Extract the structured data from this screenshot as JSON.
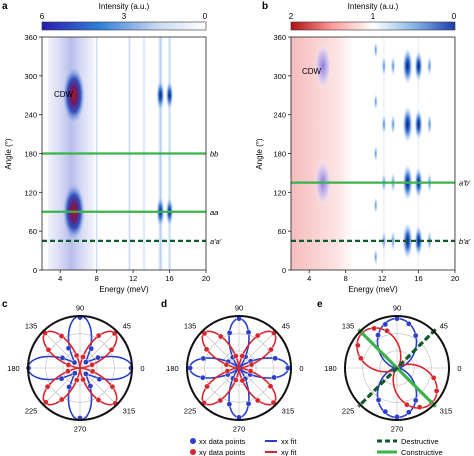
{
  "chart_data": [
    {
      "panel": "a",
      "type": "heatmap",
      "colorbar": {
        "label": "Intensity (a.u.)",
        "ticks": [
          "6",
          "3",
          "0"
        ],
        "range": [
          6,
          0
        ],
        "colormap": [
          "#2b1ab0",
          "#2f7fd8",
          "#c9d8f0",
          "#ffffff"
        ]
      },
      "xlabel": "Energy (meV)",
      "ylabel": "Angle (°)",
      "xticks": [
        4,
        8,
        12,
        16,
        20
      ],
      "yticks": [
        0,
        60,
        120,
        180,
        240,
        300,
        360
      ],
      "xlim": [
        2,
        20
      ],
      "ylim": [
        0,
        360
      ],
      "annotations": [
        {
          "text": "CDW",
          "x": 4.4,
          "y": 300
        }
      ],
      "horizontal_lines": [
        {
          "y": 180,
          "label": "bb",
          "style": "solid",
          "color": "#3bb34a"
        },
        {
          "y": 90,
          "label": "aa",
          "style": "solid",
          "color": "#3bb34a"
        },
        {
          "y": 45,
          "label": "a′a′",
          "style": "dashed",
          "color": "#0d5a2a"
        }
      ],
      "hot_spots": [
        {
          "x": 5.5,
          "y": 270,
          "intensity": 6
        },
        {
          "x": 5.5,
          "y": 90,
          "intensity": 6
        },
        {
          "x": 15.0,
          "y": 270,
          "intensity": 3
        },
        {
          "x": 15.0,
          "y": 90,
          "intensity": 3
        },
        {
          "x": 16.0,
          "y": 270,
          "intensity": 2
        },
        {
          "x": 16.0,
          "y": 90,
          "intensity": 2
        }
      ]
    },
    {
      "panel": "b",
      "type": "heatmap",
      "colorbar": {
        "label": "Intensity (a.u.)",
        "ticks": [
          "2",
          "1",
          "0"
        ],
        "range": [
          2,
          0
        ],
        "colormap": [
          "#b01010",
          "#ff9b9b",
          "#ffffff",
          "#8ab4e6",
          "#1a3fae"
        ]
      },
      "xlabel": "Energy (meV)",
      "ylabel": "Angle (°)",
      "xticks": [
        4,
        8,
        12,
        16,
        20
      ],
      "yticks": [
        0,
        60,
        120,
        180,
        240,
        300,
        360
      ],
      "xlim": [
        2,
        20
      ],
      "ylim": [
        0,
        360
      ],
      "annotations": [
        {
          "text": "CDW",
          "x": 4.4,
          "y": 300
        }
      ],
      "horizontal_lines": [
        {
          "y": 135,
          "label": "a′b′",
          "style": "solid",
          "color": "#3bb34a"
        },
        {
          "y": 45,
          "label": "b′a′",
          "style": "dashed",
          "color": "#0d5a2a"
        }
      ],
      "hot_spots": [
        {
          "x": 5.5,
          "y": 315,
          "intensity": 1
        },
        {
          "x": 5.5,
          "y": 135,
          "intensity": 1
        },
        {
          "x": 14.8,
          "y": 45,
          "intensity": 2
        },
        {
          "x": 14.8,
          "y": 135,
          "intensity": 2
        },
        {
          "x": 14.8,
          "y": 225,
          "intensity": 2
        },
        {
          "x": 14.8,
          "y": 315,
          "intensity": 2
        }
      ]
    },
    {
      "panel": "c",
      "type": "polar",
      "angle_labels": [
        "0",
        "45",
        "90",
        "135",
        "180",
        "225",
        "270",
        "315"
      ],
      "series": [
        {
          "name": "xx",
          "color": "#2b3fc9",
          "curve": "0.15 + 0.85*cos(2θ)^2",
          "points_deg": [
            0,
            30,
            45,
            60,
            90,
            120,
            135,
            150,
            180,
            210,
            225,
            240,
            270,
            300,
            315,
            330
          ],
          "points_r": [
            0.98,
            0.4,
            0.16,
            0.43,
            0.97,
            0.44,
            0.15,
            0.39,
            0.99,
            0.41,
            0.14,
            0.42,
            0.96,
            0.4,
            0.16,
            0.43
          ]
        },
        {
          "name": "xy",
          "color": "#d8262e",
          "curve": "0.95*sin(2θ)^2",
          "points_deg": [
            15,
            30,
            45,
            60,
            75,
            105,
            120,
            135,
            150,
            165,
            195,
            210,
            225,
            240,
            255,
            285,
            300,
            315,
            330,
            345
          ],
          "points_r": [
            0.24,
            0.7,
            0.94,
            0.72,
            0.22,
            0.25,
            0.71,
            0.95,
            0.7,
            0.23,
            0.24,
            0.72,
            0.93,
            0.7,
            0.24,
            0.23,
            0.71,
            0.96,
            0.72,
            0.25
          ]
        }
      ]
    },
    {
      "panel": "d",
      "type": "polar",
      "angle_labels": [
        "0",
        "45",
        "90",
        "135",
        "180",
        "225",
        "270",
        "315"
      ],
      "series": [
        {
          "name": "xx",
          "color": "#2b3fc9",
          "curve": "0.95*cos(2θ)^2",
          "points_deg": [
            0,
            15,
            30,
            60,
            75,
            90,
            105,
            120,
            150,
            165,
            180,
            195,
            210,
            240,
            255,
            270,
            285,
            300,
            330,
            345
          ],
          "points_r": [
            0.94,
            0.72,
            0.26,
            0.25,
            0.71,
            0.95,
            0.7,
            0.24,
            0.24,
            0.71,
            0.94,
            0.72,
            0.25,
            0.23,
            0.72,
            0.95,
            0.71,
            0.24,
            0.25,
            0.7
          ]
        },
        {
          "name": "xy",
          "color": "#d8262e",
          "curve": "0.95*sin(2θ)^2",
          "points_deg": [
            15,
            30,
            45,
            60,
            75,
            105,
            120,
            135,
            150,
            165,
            195,
            210,
            225,
            240,
            255,
            285,
            300,
            315,
            330,
            345
          ],
          "points_r": [
            0.25,
            0.71,
            0.95,
            0.72,
            0.24,
            0.24,
            0.7,
            0.94,
            0.72,
            0.25,
            0.23,
            0.71,
            0.95,
            0.72,
            0.24,
            0.25,
            0.72,
            0.94,
            0.7,
            0.23
          ]
        }
      ]
    },
    {
      "panel": "e",
      "type": "polar",
      "angle_labels": [
        "0",
        "45",
        "90",
        "135",
        "180",
        "225",
        "270",
        "315"
      ],
      "series": [
        {
          "name": "xx",
          "color": "#2b3fc9",
          "curve": "0.05 + 0.90*cos(θ-90°)^2",
          "points_deg": [
            60,
            75,
            90,
            105,
            120,
            240,
            255,
            270,
            285,
            300
          ],
          "points_r": [
            0.72,
            0.88,
            0.95,
            0.87,
            0.73,
            0.71,
            0.87,
            0.94,
            0.88,
            0.72
          ]
        },
        {
          "name": "xy",
          "color": "#d8262e",
          "curve": "0.05 + 0.90*cos(θ-135°)^2",
          "points_deg": [
            105,
            120,
            135,
            150,
            165,
            285,
            300,
            315,
            330,
            345
          ],
          "points_r": [
            0.74,
            0.88,
            0.95,
            0.87,
            0.72,
            0.73,
            0.87,
            0.94,
            0.88,
            0.73
          ]
        }
      ],
      "lines": [
        {
          "angle_deg": 135,
          "style": "solid",
          "color": "#3bb34a",
          "name": "Constructive"
        },
        {
          "angle_deg": 45,
          "style": "dashed",
          "color": "#0d5a2a",
          "name": "Destructive"
        }
      ]
    }
  ],
  "panel_labels": [
    "a",
    "b",
    "c",
    "d",
    "e"
  ],
  "legend_cd": [
    {
      "text": "xx data points",
      "color": "#2b3fc9",
      "kind": "dot"
    },
    {
      "text": "xy data points",
      "color": "#d8262e",
      "kind": "dot"
    },
    {
      "text": "xx fit",
      "color": "#2b3fc9",
      "kind": "line"
    },
    {
      "text": "xy fit",
      "color": "#d8262e",
      "kind": "line"
    }
  ],
  "legend_e": [
    {
      "text": "Destructive",
      "color": "#0d5a2a",
      "kind": "dashed"
    },
    {
      "text": "Constructive",
      "color": "#3bb34a",
      "kind": "solid"
    }
  ]
}
